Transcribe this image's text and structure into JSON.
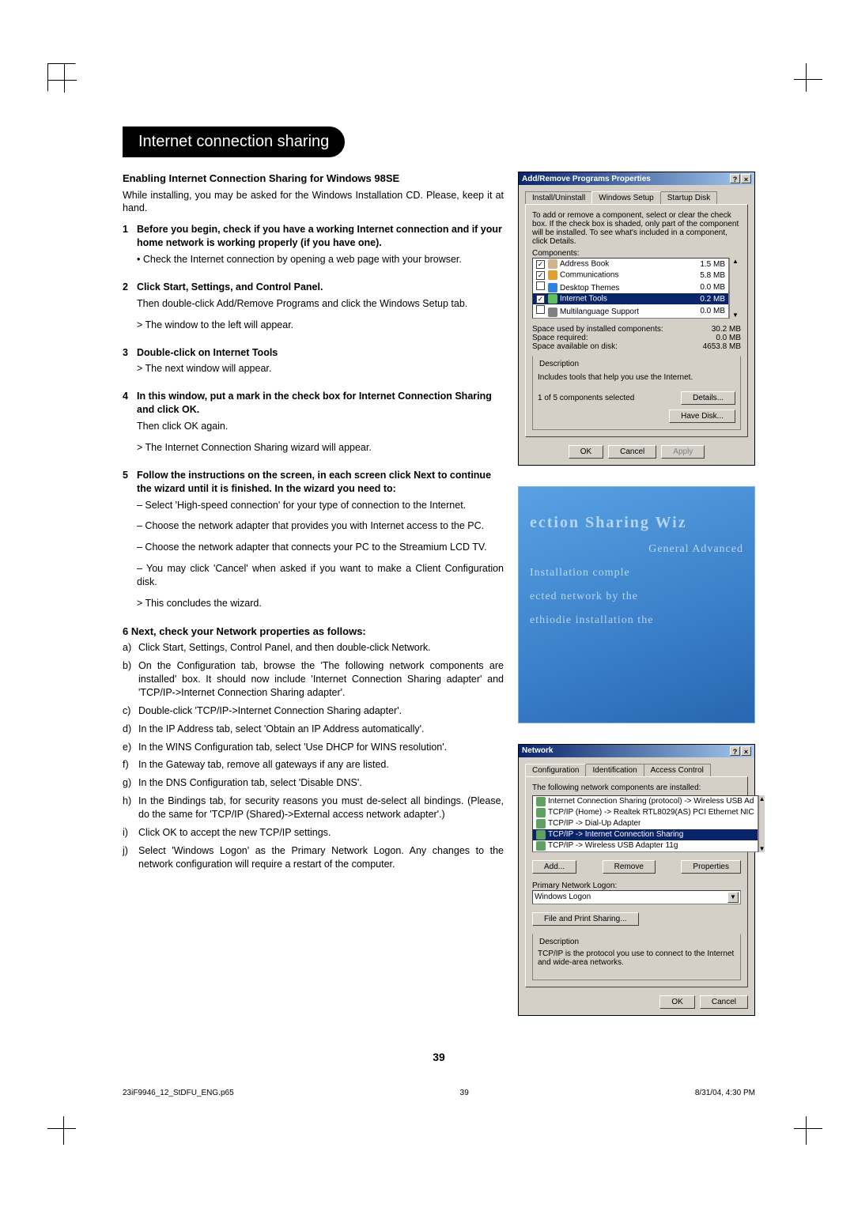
{
  "page": {
    "title": "Internet connection sharing",
    "number": "39"
  },
  "section1": {
    "heading": "Enabling Internet Connection Sharing for Windows 98SE",
    "intro": "While installing, you may be asked for the Windows Installation CD. Please, keep it at hand.",
    "steps": [
      {
        "n": "1",
        "bold": "Before you begin, check if you have a working Internet connection and if your home network is working properly (if you have one).",
        "lines": [
          "• Check the Internet connection by opening a web page with your browser."
        ]
      },
      {
        "n": "2",
        "bold": "Click Start, Settings, and Control Panel.",
        "lines": [
          "Then double-click Add/Remove Programs and click the Windows Setup tab.",
          "> The window to the left will appear."
        ]
      },
      {
        "n": "3",
        "bold": "Double-click on Internet Tools",
        "lines": [
          "> The next window will appear."
        ]
      },
      {
        "n": "4",
        "bold": "In this window, put a mark in the check box for Internet Connection Sharing and click OK.",
        "lines": [
          "Then click OK again.",
          "> The Internet Connection Sharing wizard will appear."
        ]
      },
      {
        "n": "5",
        "bold": "Follow the instructions on the screen, in each screen click Next to continue the wizard until it is finished. In the wizard you need to:",
        "lines": [
          "– Select 'High-speed connection' for your type of connection to the Internet.",
          "– Choose the network adapter that provides you with Internet access to the PC.",
          "– Choose the network adapter that connects your PC to the Streamium LCD TV.",
          "– You may click 'Cancel' when asked if you want to make a Client  Configuration disk.",
          "> This concludes the wizard."
        ]
      }
    ]
  },
  "section2": {
    "heading": "6 Next, check your Network properties as follows:",
    "items": [
      {
        "l": "a)",
        "t": "Click Start, Settings, Control Panel, and then double-click Network."
      },
      {
        "l": "b)",
        "t": "On the Configuration tab, browse the 'The following network components are installed' box. It should now include 'Internet Connection Sharing adapter' and 'TCP/IP->Internet Connection Sharing adapter'."
      },
      {
        "l": "c)",
        "t": "Double-click 'TCP/IP->Internet Connection Sharing adapter'."
      },
      {
        "l": "d)",
        "t": "In the IP Address tab, select 'Obtain an IP Address automatically'."
      },
      {
        "l": "e)",
        "t": "In the WINS Configuration tab, select 'Use DHCP for WINS resolution'."
      },
      {
        "l": "f)",
        "t": "In the Gateway tab, remove all gateways if any are listed."
      },
      {
        "l": "g)",
        "t": "In the DNS Configuration tab, select 'Disable DNS'."
      },
      {
        "l": "h)",
        "t": "In the Bindings tab, for security reasons you must de-select all bindings. (Please, do the same for 'TCP/IP (Shared)->External access network adapter'.)"
      },
      {
        "l": "i)",
        "t": "Click OK to accept the new TCP/IP settings."
      },
      {
        "l": "j)",
        "t": "Select 'Windows Logon' as the Primary Network Logon. Any changes to the network configuration will require a restart of the computer."
      }
    ]
  },
  "dlg1": {
    "title": "Add/Remove Programs Properties",
    "tabs": [
      "Install/Uninstall",
      "Windows Setup",
      "Startup Disk"
    ],
    "intro": "To add or remove a component, select or clear the check box. If the check box is shaded, only part of the component will be installed. To see what's included in a component, click Details.",
    "components_label": "Components:",
    "rows": [
      {
        "chk": "✓",
        "name": "Address Book",
        "size": "1.5 MB",
        "color": "#d2b48c"
      },
      {
        "chk": "✓",
        "name": "Communications",
        "size": "5.8 MB",
        "color": "#e0a030"
      },
      {
        "chk": "",
        "name": "Desktop Themes",
        "size": "0.0 MB",
        "color": "#3080e0"
      },
      {
        "chk": "✓",
        "name": "Internet Tools",
        "size": "0.2 MB",
        "sel": true,
        "color": "#60c060"
      },
      {
        "chk": "",
        "name": "Multilanguage Support",
        "size": "0.0 MB",
        "color": "#808080"
      }
    ],
    "info": [
      {
        "l": "Space used by installed components:",
        "v": "30.2 MB"
      },
      {
        "l": "Space required:",
        "v": "0.0 MB"
      },
      {
        "l": "Space available on disk:",
        "v": "4653.8 MB"
      }
    ],
    "desc_label": "Description",
    "desc": "Includes tools that help you use the Internet.",
    "selected": "1 of 5 components selected",
    "details_btn": "Details...",
    "havedisk_btn": "Have Disk...",
    "ok": "OK",
    "cancel": "Cancel",
    "apply": "Apply"
  },
  "bluecard": {
    "l1": "ection Sharing Wiz",
    "l2": "General  Advanced",
    "l3": "Installation comple",
    "l4": "ected network  by the",
    "l5": "ethiodie  installation the"
  },
  "dlg3": {
    "title": "Network",
    "tabs": [
      "Configuration",
      "Identification",
      "Access Control"
    ],
    "label": "The following network components are installed:",
    "rows": [
      "Internet Connection Sharing (protocol) -> Wireless USB Ad",
      "TCP/IP (Home) -> Realtek RTL8029(AS) PCI Ethernet NIC",
      "TCP/IP -> Dial-Up Adapter",
      "TCP/IP -> Internet Connection Sharing",
      "TCP/IP -> Wireless USB Adapter 11g"
    ],
    "sel_index": 3,
    "add": "Add...",
    "remove": "Remove",
    "properties": "Properties",
    "pnl_label": "Primary Network Logon:",
    "pnl_value": "Windows Logon",
    "fps": "File and Print Sharing...",
    "desc_label": "Description",
    "desc": "TCP/IP is the protocol you use to connect to the Internet and wide-area networks.",
    "ok": "OK",
    "cancel": "Cancel"
  },
  "footer": {
    "left": "23iF9946_12_StDFU_ENG.p65",
    "mid": "39",
    "right": "8/31/04, 4:30 PM"
  }
}
